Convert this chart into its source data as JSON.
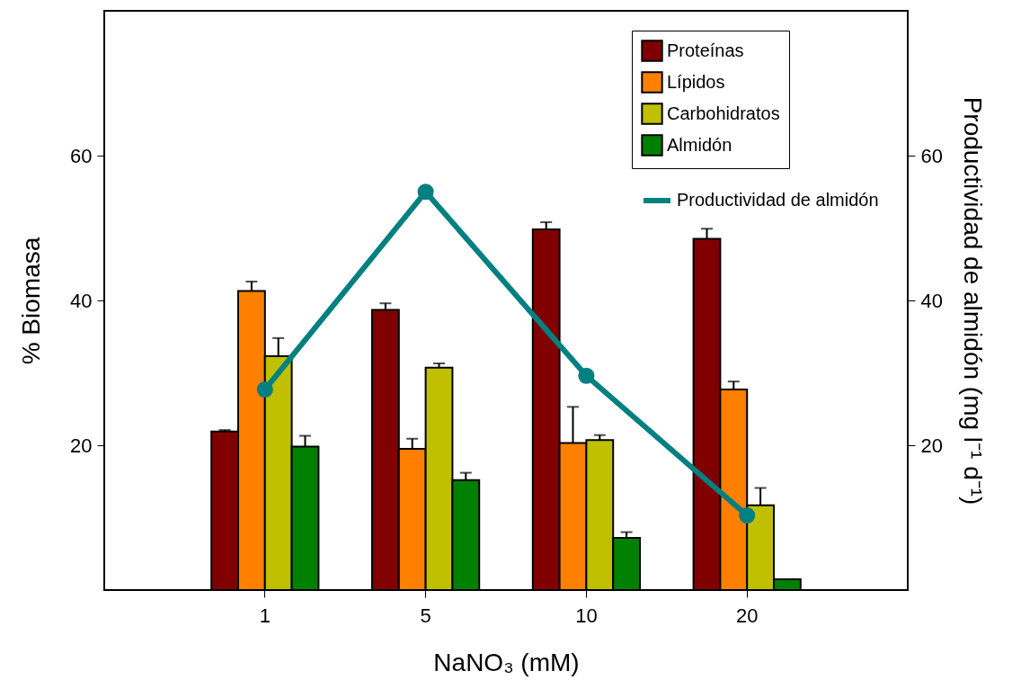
{
  "chart_data": {
    "type": "bar",
    "xlabel": "NaNO₃ (mM)",
    "ylabel": "% Biomasa",
    "y2label": "Productividad de almidón (mg l⁻¹ d⁻¹)",
    "categories": [
      "1",
      "5",
      "10",
      "20"
    ],
    "series": [
      {
        "name": "Proteínas",
        "color": "#800000",
        "values": [
          21.9,
          38.7,
          49.8,
          48.5
        ],
        "errors": [
          0.2,
          0.9,
          1.0,
          1.4
        ]
      },
      {
        "name": "Lípidos",
        "color": "#ff8000",
        "values": [
          41.3,
          19.5,
          20.3,
          27.7
        ],
        "errors": [
          1.3,
          1.4,
          5.0,
          1.1
        ]
      },
      {
        "name": "Carbohidratos",
        "color": "#c0c000",
        "values": [
          32.3,
          30.7,
          20.7,
          11.7
        ],
        "errors": [
          2.5,
          0.6,
          0.7,
          2.4
        ]
      },
      {
        "name": "Almidón",
        "color": "#008000",
        "values": [
          19.8,
          15.2,
          7.2,
          1.5
        ],
        "errors": [
          1.5,
          1.0,
          0.8,
          null
        ]
      },
      {
        "name": "Productividad de almidón",
        "type": "line",
        "axis": "y2",
        "color": "#008080",
        "values": [
          27.7,
          55.0,
          29.6,
          10.3
        ]
      }
    ],
    "ylim": [
      0,
      80
    ],
    "yticks": [
      20,
      40,
      60
    ],
    "y2lim": [
      0,
      80
    ],
    "y2ticks": [
      20,
      40,
      60
    ],
    "grid": false,
    "legend": "top right",
    "marker": "circle"
  }
}
